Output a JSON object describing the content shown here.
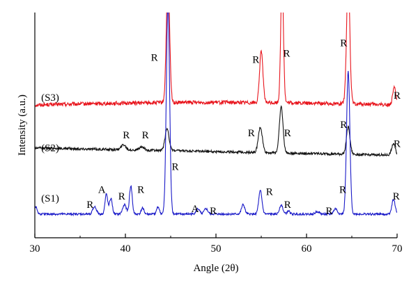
{
  "chart_data": {
    "type": "line",
    "title": "",
    "xlabel": "Angle (2θ)",
    "ylabel": "Intensity (a.u.)",
    "xlim": [
      30,
      70
    ],
    "xticks": [
      30,
      40,
      50,
      60,
      70
    ],
    "ylim": [
      0,
      100
    ],
    "grid": false,
    "legend": "none",
    "series": [
      {
        "name": "(S3)",
        "color": "#e8141c",
        "baseline": 56,
        "noise": 0.9,
        "peaks": [
          [
            44.7,
            60,
            0.18
          ],
          [
            55.0,
            25,
            0.18
          ],
          [
            57.3,
            60,
            0.15
          ],
          [
            64.6,
            60,
            0.18
          ],
          [
            69.7,
            8,
            0.18
          ]
        ]
      },
      {
        "name": "(S2)",
        "color": "#111111",
        "baseline": 32,
        "noise": 0.6,
        "peaks": [
          [
            39.8,
            2.5,
            0.25
          ],
          [
            41.8,
            1.5,
            0.25
          ],
          [
            44.6,
            10.5,
            0.22
          ],
          [
            54.9,
            12,
            0.22
          ],
          [
            57.2,
            22,
            0.2
          ],
          [
            64.6,
            13,
            0.2
          ],
          [
            69.6,
            5.5,
            0.2
          ]
        ]
      },
      {
        "name": "(S1)",
        "color": "#1a1ac8",
        "baseline": 4,
        "noise": 0.5,
        "peaks": [
          [
            30.1,
            3.5,
            0.15
          ],
          [
            36.6,
            3.5,
            0.2
          ],
          [
            37.9,
            9.5,
            0.15
          ],
          [
            38.4,
            7.5,
            0.15
          ],
          [
            39.9,
            4.5,
            0.2
          ],
          [
            40.6,
            13.5,
            0.15
          ],
          [
            41.9,
            3,
            0.15
          ],
          [
            43.6,
            3.5,
            0.15
          ],
          [
            44.7,
            100,
            0.18
          ],
          [
            48.0,
            2.5,
            0.2
          ],
          [
            48.9,
            2.5,
            0.2
          ],
          [
            53.0,
            4.5,
            0.18
          ],
          [
            54.9,
            11,
            0.18
          ],
          [
            57.2,
            4.5,
            0.18
          ],
          [
            58.0,
            1.5,
            0.15
          ],
          [
            61.2,
            1.2,
            0.2
          ],
          [
            63.2,
            2.5,
            0.2
          ],
          [
            64.6,
            68,
            0.18
          ],
          [
            69.6,
            7,
            0.18
          ]
        ]
      }
    ],
    "annotations": [
      {
        "text": "R",
        "x": 43.2,
        "y": 77
      },
      {
        "text": "R",
        "x": 54.4,
        "y": 76
      },
      {
        "text": "R",
        "x": 57.8,
        "y": 79
      },
      {
        "text": "R",
        "x": 64.1,
        "y": 84
      },
      {
        "text": "R",
        "x": 70.0,
        "y": 59
      },
      {
        "text": "(S3)",
        "x": 30.7,
        "y": 58
      },
      {
        "text": "R",
        "x": 40.1,
        "y": 40
      },
      {
        "text": "R",
        "x": 42.2,
        "y": 40
      },
      {
        "text": "R",
        "x": 53.9,
        "y": 41
      },
      {
        "text": "R",
        "x": 57.9,
        "y": 41
      },
      {
        "text": "R",
        "x": 64.1,
        "y": 45
      },
      {
        "text": "R",
        "x": 70.0,
        "y": 36
      },
      {
        "text": "(S2)",
        "x": 30.7,
        "y": 34
      },
      {
        "text": "R",
        "x": 45.5,
        "y": 25
      },
      {
        "text": "A",
        "x": 37.4,
        "y": 14
      },
      {
        "text": "R",
        "x": 39.6,
        "y": 11
      },
      {
        "text": "R",
        "x": 41.7,
        "y": 14
      },
      {
        "text": "R",
        "x": 36.1,
        "y": 7
      },
      {
        "text": "A",
        "x": 47.7,
        "y": 5
      },
      {
        "text": "R",
        "x": 49.7,
        "y": 4
      },
      {
        "text": "R",
        "x": 55.9,
        "y": 13
      },
      {
        "text": "R",
        "x": 57.9,
        "y": 7
      },
      {
        "text": "R",
        "x": 62.5,
        "y": 4
      },
      {
        "text": "R",
        "x": 64.0,
        "y": 14
      },
      {
        "text": "R",
        "x": 69.9,
        "y": 11
      },
      {
        "text": "(S1)",
        "x": 30.7,
        "y": 10
      }
    ]
  }
}
